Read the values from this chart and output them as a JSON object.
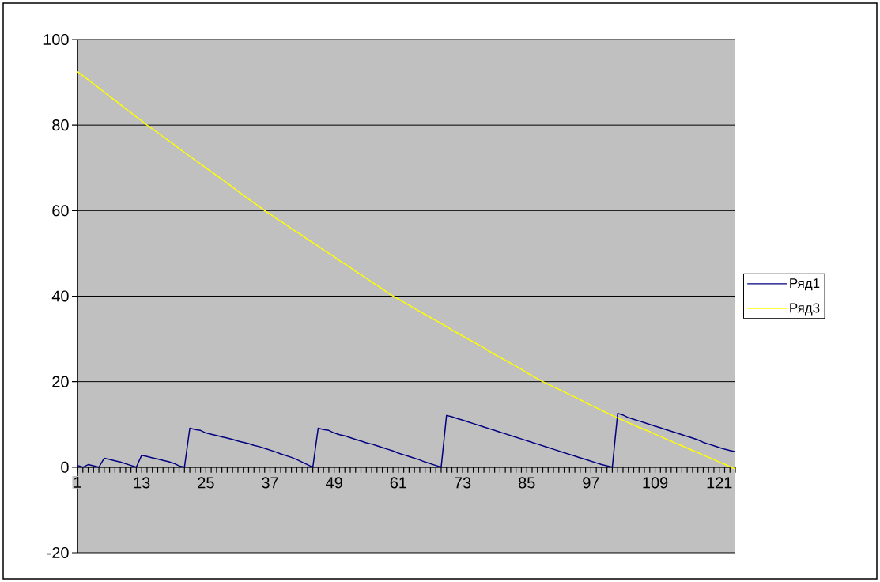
{
  "chart_data": {
    "type": "line",
    "categories": [
      "1",
      null,
      null,
      null,
      null,
      null,
      null,
      null,
      null,
      null,
      null,
      null,
      "13",
      null,
      null,
      null,
      null,
      null,
      null,
      null,
      null,
      null,
      null,
      null,
      "25",
      null,
      null,
      null,
      null,
      null,
      null,
      null,
      null,
      null,
      null,
      null,
      "37",
      null,
      null,
      null,
      null,
      null,
      null,
      null,
      null,
      null,
      null,
      null,
      "49",
      null,
      null,
      null,
      null,
      null,
      null,
      null,
      null,
      null,
      null,
      null,
      "61",
      null,
      null,
      null,
      null,
      null,
      null,
      null,
      null,
      null,
      null,
      null,
      "73",
      null,
      null,
      null,
      null,
      null,
      null,
      null,
      null,
      null,
      null,
      null,
      "85",
      null,
      null,
      null,
      null,
      null,
      null,
      null,
      null,
      null,
      null,
      null,
      "97",
      null,
      null,
      null,
      null,
      null,
      null,
      null,
      null,
      null,
      null,
      null,
      "109",
      null,
      null,
      null,
      null,
      null,
      null,
      null,
      null,
      null,
      null,
      null,
      "121",
      null,
      null,
      null
    ],
    "series": [
      {
        "name": "Ряд1",
        "color": "#000080",
        "values": [
          0.4,
          0,
          0.6,
          0.3,
          0,
          2.1,
          1.8,
          1.5,
          1.2,
          0.8,
          0.4,
          0,
          2.8,
          2.5,
          2.2,
          1.9,
          1.6,
          1.3,
          0.9,
          0.3,
          0,
          9.1,
          8.8,
          8.6,
          8.0,
          7.7,
          7.4,
          7.1,
          6.8,
          6.5,
          6.1,
          5.8,
          5.5,
          5.1,
          4.8,
          4.4,
          4.0,
          3.6,
          3.1,
          2.7,
          2.3,
          1.8,
          1.2,
          0.6,
          0,
          9.1,
          8.8,
          8.6,
          8.0,
          7.6,
          7.3,
          6.9,
          6.5,
          6.1,
          5.7,
          5.4,
          5.0,
          4.6,
          4.2,
          3.8,
          3.3,
          2.9,
          2.5,
          2.1,
          1.7,
          1.2,
          0.8,
          0.4,
          0,
          12.1,
          11.8,
          11.4,
          11.0,
          10.6,
          10.2,
          9.8,
          9.4,
          9.0,
          8.6,
          8.2,
          7.8,
          7.4,
          7.0,
          6.6,
          6.2,
          5.8,
          5.4,
          5.0,
          4.6,
          4.2,
          3.8,
          3.4,
          3.0,
          2.6,
          2.2,
          1.8,
          1.4,
          1.0,
          0.6,
          0.3,
          0,
          12.6,
          12.2,
          11.6,
          11.2,
          10.8,
          10.4,
          10.0,
          9.6,
          9.2,
          8.8,
          8.4,
          8.0,
          7.6,
          7.2,
          6.8,
          6.4,
          5.8,
          5.4,
          5.0,
          4.6,
          4.2,
          3.9,
          3.6
        ]
      },
      {
        "name": "Ряд3",
        "color": "#ffff00",
        "values": [
          92.5,
          91.5,
          90.6,
          89.6,
          88.7,
          87.7,
          86.7,
          85.8,
          84.8,
          83.8,
          82.9,
          81.9,
          81.0,
          80.0,
          79.1,
          78.2,
          77.3,
          76.4,
          75.5,
          74.5,
          73.6,
          72.7,
          71.8,
          70.9,
          70.0,
          69.1,
          68.2,
          67.3,
          66.4,
          65.5,
          64.5,
          63.6,
          62.7,
          61.8,
          60.9,
          60.0,
          59.2,
          58.3,
          57.5,
          56.7,
          55.8,
          55.0,
          54.2,
          53.3,
          52.5,
          51.7,
          50.8,
          50.0,
          49.2,
          48.3,
          47.5,
          46.7,
          45.8,
          45.0,
          44.2,
          43.3,
          42.5,
          41.7,
          40.8,
          40.0,
          39.3,
          38.6,
          37.9,
          37.1,
          36.4,
          35.7,
          35.0,
          34.3,
          33.6,
          32.9,
          32.1,
          31.4,
          30.7,
          30.0,
          29.3,
          28.6,
          27.9,
          27.1,
          26.4,
          25.7,
          25.0,
          24.3,
          23.6,
          22.9,
          22.1,
          21.4,
          20.7,
          20.0,
          19.4,
          18.8,
          18.2,
          17.6,
          17.0,
          16.4,
          15.8,
          15.1,
          14.5,
          13.9,
          13.3,
          12.7,
          12.1,
          11.5,
          11.0,
          10.4,
          9.9,
          9.3,
          8.8,
          8.3,
          7.7,
          7.2,
          6.6,
          6.1,
          5.5,
          5.0,
          4.5,
          3.9,
          3.4,
          2.8,
          2.3,
          1.8,
          1.2,
          0.7,
          0.1,
          -0.4
        ]
      }
    ],
    "ylim": [
      -20,
      100
    ],
    "yticks": [
      -20,
      0,
      20,
      40,
      60,
      80,
      100
    ],
    "grid": "y",
    "legend": "right"
  }
}
